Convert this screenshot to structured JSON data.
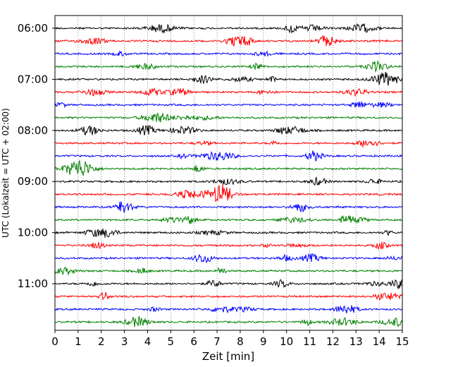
{
  "chart_data": {
    "type": "line",
    "title": "",
    "xlabel": "Zeit  [min]",
    "ylabel": "UTC (Lokalzeit = UTC + 02:00)",
    "xlim": [
      0,
      15
    ],
    "x_ticks": [
      "0",
      "1",
      "2",
      "3",
      "4",
      "5",
      "6",
      "7",
      "8",
      "9",
      "10",
      "11",
      "12",
      "13",
      "14",
      "15"
    ],
    "y_tick_labels": [
      "06:00",
      "07:00",
      "08:00",
      "09:00",
      "10:00",
      "11:00"
    ],
    "grid": "vertical-dotted",
    "trace_colors": [
      "#000000",
      "#ff0000",
      "#0000ff",
      "#008000"
    ],
    "start_time": "06:00",
    "end_time": "11:45",
    "trace_interval_min": 15,
    "num_traces": 24
  }
}
